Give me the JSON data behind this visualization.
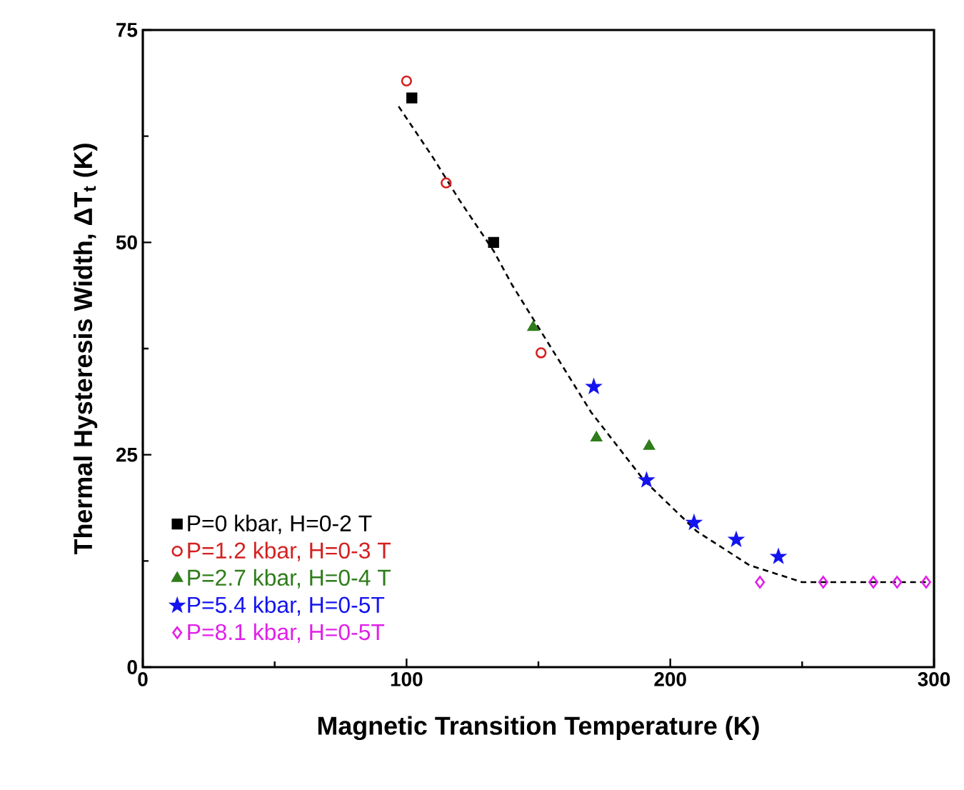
{
  "chart_data": {
    "type": "scatter",
    "xlabel": "Magnetic Transition Temperature (K)",
    "ylabel": "Thermal Hysteresis Width, ΔT$_{t}$ (K)",
    "xlim": [
      0,
      300
    ],
    "xticks": [
      0,
      100,
      200,
      300
    ],
    "ylim": [
      0,
      75
    ],
    "yticks": [
      0,
      25,
      50,
      75
    ],
    "grid": false,
    "legend": "bottom left",
    "series": [
      {
        "name": "P=0 kbar, H=0-2 T",
        "color": "#000000",
        "marker": "square",
        "x": [
          102,
          133
        ],
        "values": [
          67,
          50
        ]
      },
      {
        "name": "P=1.2 kbar, H=0-3 T",
        "color": "#d42020",
        "marker": "circle",
        "x": [
          100,
          115,
          151
        ],
        "values": [
          69,
          57,
          37
        ]
      },
      {
        "name": "P=2.7 kbar, H=0-4 T",
        "color": "#2e7d1a",
        "marker": "triangle",
        "x": [
          148,
          172,
          192
        ],
        "values": [
          40,
          27,
          26
        ]
      },
      {
        "name": "P=5.4 kbar, H=0-5T",
        "color": "#1414f0",
        "marker": "star",
        "x": [
          171,
          191,
          209,
          225,
          241
        ],
        "values": [
          33,
          22,
          17,
          15,
          13
        ]
      },
      {
        "name": "P=8.1 kbar, H=0-5T",
        "color": "#e020e8",
        "marker": "diamond",
        "x": [
          234,
          258,
          277,
          286,
          297
        ],
        "values": [
          10,
          10,
          10,
          10,
          10
        ]
      },
      {
        "type": "line",
        "color": "#000000",
        "marker": "none",
        "line_style": "dashed",
        "x": [
          97,
          110,
          120,
          133,
          140,
          150,
          160,
          170,
          180,
          190,
          200,
          210,
          220,
          230,
          240,
          250,
          260,
          275,
          297
        ],
        "values": [
          66,
          60,
          55,
          49,
          45,
          40,
          35,
          30,
          26,
          22,
          19,
          16,
          14,
          12,
          11,
          10,
          10,
          10,
          10
        ]
      }
    ]
  }
}
